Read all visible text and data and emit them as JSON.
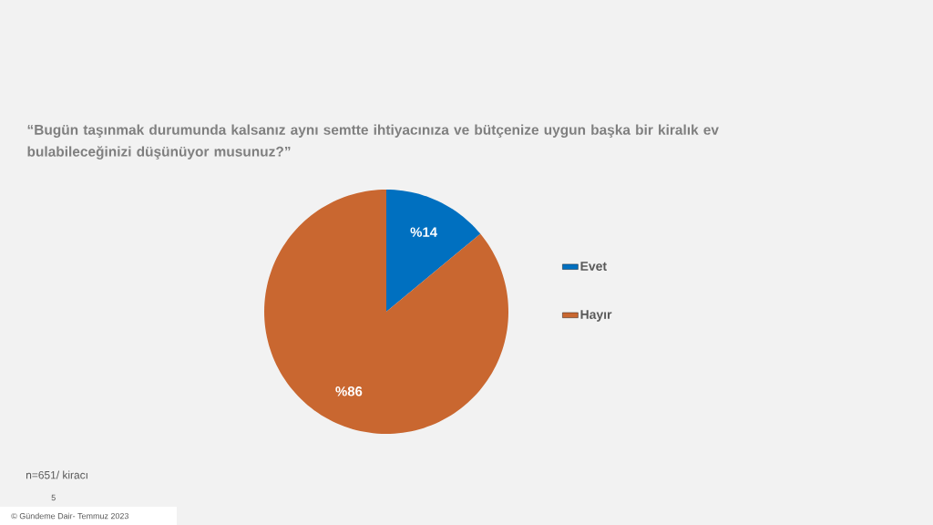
{
  "chart_data": {
    "type": "pie",
    "title": "“Bugün taşınmak durumunda kalsanız aynı semtte ihtiyacınıza  ve bütçenize uygun başka bir kiralık ev bulabileceğinizi  düşünüyor musunuz?”",
    "categories": [
      "Evet",
      "Hayır"
    ],
    "values": [
      14,
      86
    ],
    "value_labels": [
      "%14",
      "%86"
    ],
    "colors": [
      "#0070c0",
      "#c96730"
    ],
    "legend": "right",
    "annotations": [
      "n=651/ kiracı",
      "5",
      "© Gündeme Dair- Temmuz 2023"
    ]
  }
}
